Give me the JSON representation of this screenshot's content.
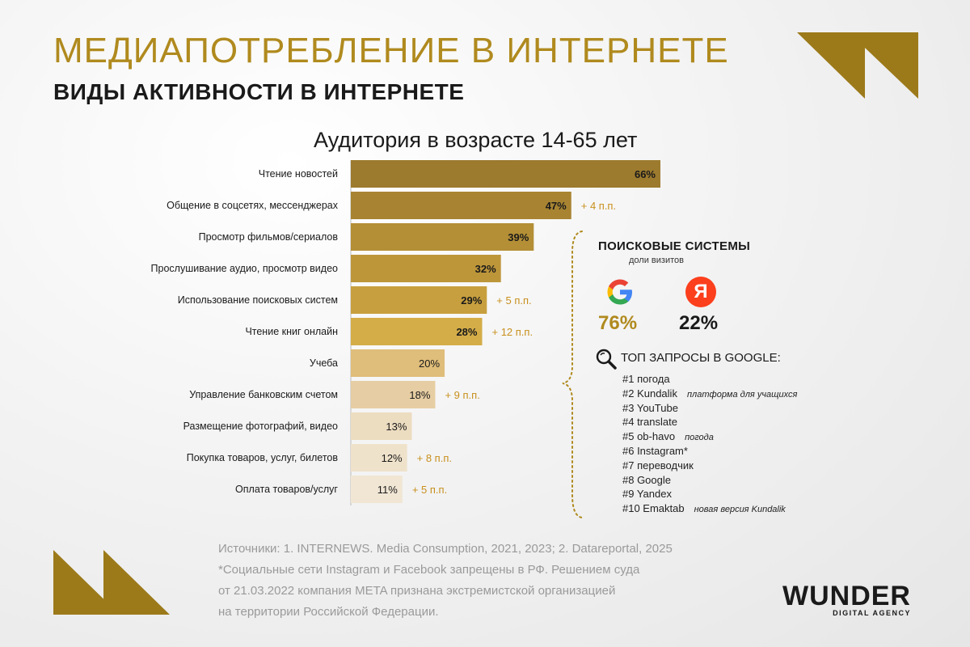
{
  "header": {
    "title": "МЕДИАПОТРЕБЛЕНИЕ В ИНТЕРНЕТЕ",
    "subtitle": "ВИДЫ АКТИВНОСТИ В ИНТЕРНЕТЕ"
  },
  "colors": {
    "accent": "#b08a1e",
    "delta": "#c8901e",
    "bar_gradient": [
      "#9c7a2e",
      "#a88432",
      "#b48f36",
      "#bd963a",
      "#c79f3e",
      "#d4ad48",
      "#dfbd7a",
      "#e6cda3",
      "#ecdcc0",
      "#efe2cb",
      "#f1e6d4"
    ]
  },
  "chart_data": {
    "type": "bar",
    "orientation": "horizontal",
    "title": "Аудитория в возрасте 14-65 лет",
    "categories": [
      "Чтение новостей",
      "Общение в соцсетях, мессенджерах",
      "Просмотр фильмов/сериалов",
      "Прослушивание аудио, просмотр видео",
      "Использование поисковых систем",
      "Чтение книг онлайн",
      "Учеба",
      "Управление банковским счетом",
      "Размещение фотографий, видео",
      "Покупка товаров, услуг, билетов",
      "Оплата товаров/услуг"
    ],
    "values": [
      66,
      47,
      39,
      32,
      29,
      28,
      20,
      18,
      13,
      12,
      11
    ],
    "value_labels": [
      "66%",
      "47%",
      "39%",
      "32%",
      "29%",
      "28%",
      "20%",
      "18%",
      "13%",
      "12%",
      "11%"
    ],
    "deltas": [
      "",
      "+ 4 п.п.",
      "",
      "",
      "+ 5 п.п.",
      "+ 12 п.п.",
      "",
      "+ 9 п.п.",
      "",
      "+ 8 п.п.",
      "+ 5 п.п."
    ],
    "xlim": [
      0,
      66
    ]
  },
  "search": {
    "title": "ПОИСКОВЫЕ СИСТЕМЫ",
    "subtitle": "доли визитов",
    "google_icon": "google-logo",
    "google_pct": "76%",
    "yandex_letter": "Я",
    "yandex_pct": "22%",
    "top_icon": "magnifier-icon",
    "top_title": "ТОП ЗАПРОСЫ В GOOGLE:",
    "queries": [
      {
        "text": "#1 погода",
        "note": ""
      },
      {
        "text": "#2 Kundalik",
        "note": "платформа для учащихся"
      },
      {
        "text": "#3 YouTube",
        "note": ""
      },
      {
        "text": "#4 translate",
        "note": ""
      },
      {
        "text": "#5 ob-havo",
        "note": "погода"
      },
      {
        "text": "#6 Instagram*",
        "note": ""
      },
      {
        "text": "#7 переводчик",
        "note": ""
      },
      {
        "text": "#8 Google",
        "note": ""
      },
      {
        "text": "#9 Yandex",
        "note": ""
      },
      {
        "text": "#10 Emaktab",
        "note": "новая версия Kundalik"
      }
    ]
  },
  "footer": {
    "line1": "Источники: 1. INTERNEWS. Media Consumption, 2021, 2023; 2. Datareportal, 2025",
    "line2": "*Социальные сети Instagram и Facebook запрещены в РФ. Решением суда",
    "line3": "от 21.03.2022 компания META признана экстремистской организацией",
    "line4": "на территории Российской Федерации.",
    "brand_name": "WUNDER",
    "brand_sub": "DIGITAL AGENCY"
  }
}
